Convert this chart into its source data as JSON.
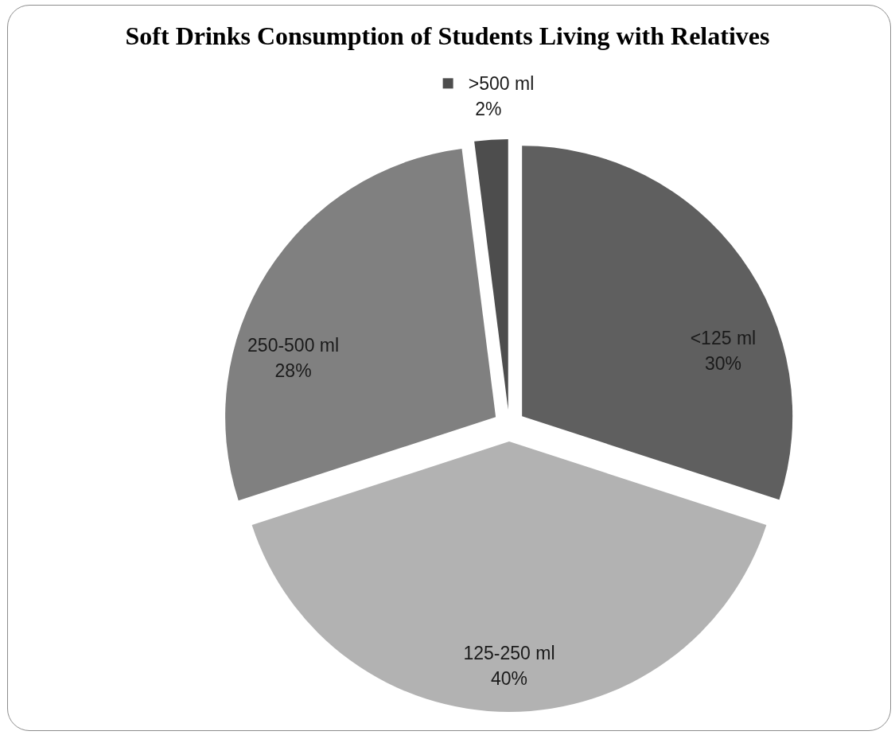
{
  "chart_data": {
    "type": "pie",
    "title": "Soft Drinks Consumption of Students Living with Relatives",
    "categories": [
      "<125 ml",
      "125-250 ml",
      "250-500 ml",
      ">500 ml"
    ],
    "values": [
      30,
      40,
      28,
      2
    ],
    "colors": [
      "#5f5f5f",
      "#b2b2b2",
      "#808080",
      "#4d4d4d"
    ],
    "value_labels": [
      "30%",
      "40%",
      "28%",
      "2%"
    ]
  }
}
